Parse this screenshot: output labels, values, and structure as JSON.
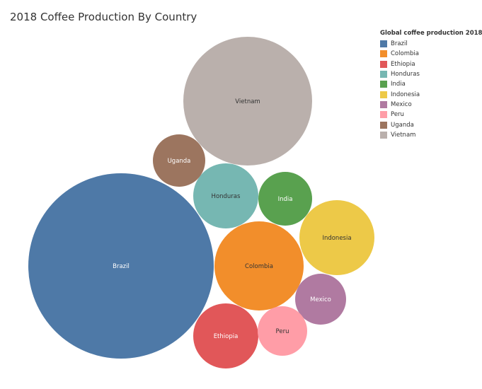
{
  "chart_data": {
    "type": "bubble",
    "title": "2018 Coffee Production By Country",
    "legend": {
      "title": "Global coffee production 2018",
      "position": "top-right"
    },
    "series": [
      {
        "name": "Brazil",
        "color": "#4e79a7",
        "label_color": "#ffffff"
      },
      {
        "name": "Colombia",
        "color": "#f28e2b",
        "label_color": "#333333"
      },
      {
        "name": "Ethiopia",
        "color": "#e15759",
        "label_color": "#ffffff"
      },
      {
        "name": "Honduras",
        "color": "#76b7b2",
        "label_color": "#333333"
      },
      {
        "name": "India",
        "color": "#59a14f",
        "label_color": "#ffffff"
      },
      {
        "name": "Indonesia",
        "color": "#edc948",
        "label_color": "#333333"
      },
      {
        "name": "Mexico",
        "color": "#b07aa1",
        "label_color": "#ffffff"
      },
      {
        "name": "Peru",
        "color": "#ff9da7",
        "label_color": "#333333"
      },
      {
        "name": "Uganda",
        "color": "#9c755f",
        "label_color": "#ffffff"
      },
      {
        "name": "Vietnam",
        "color": "#bab0ac",
        "label_color": "#333333"
      }
    ]
  }
}
